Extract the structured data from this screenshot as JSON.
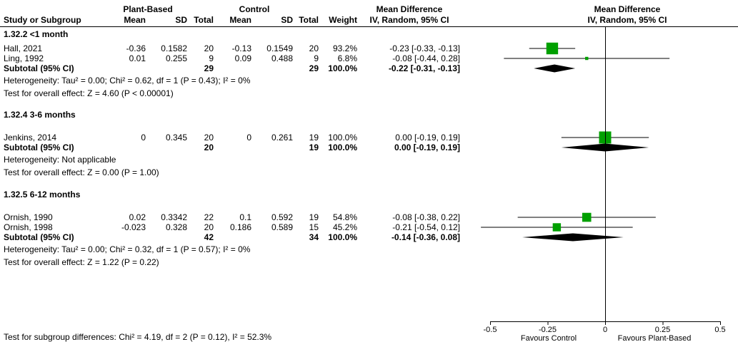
{
  "colors": {
    "square": "#00a000",
    "diamond": "#000000",
    "line": "#000000"
  },
  "header": {
    "group1": "Plant-Based",
    "group2": "Control",
    "md_text_col": "Mean Difference",
    "md_plot_col": "Mean Difference",
    "cols": [
      "Study or Subgroup",
      "Mean",
      "SD",
      "Total",
      "Mean",
      "SD",
      "Total",
      "Weight",
      "IV, Random, 95% CI"
    ],
    "plot_subheader": "IV, Random, 95% CI"
  },
  "chart_data": {
    "type": "forest",
    "effect_measure": "Mean Difference",
    "model": "IV, Random, 95% CI",
    "xlim": [
      -0.5,
      0.5
    ],
    "tick_values": [
      -0.5,
      -0.25,
      0,
      0.25,
      0.5
    ],
    "ticks": [
      "-0.5",
      "-0.25",
      "0",
      "0.25",
      "0.5"
    ],
    "favours_left": "Favours Control",
    "favours_right": "Favours Plant-Based",
    "footer": "Test for subgroup differences: Chi² = 4.19, df = 2 (P = 0.12), I² = 52.3%",
    "groups": [
      {
        "title": "1.32.2 <1 month",
        "studies": [
          {
            "study": "Hall, 2021",
            "t_mean": "-0.36",
            "t_sd": "0.1582",
            "t_total": "20",
            "c_mean": "-0.13",
            "c_sd": "0.1549",
            "c_total": "20",
            "weight": "93.2%",
            "ci_text": "-0.23 [-0.33, -0.13]",
            "est": -0.23,
            "lo": -0.33,
            "hi": -0.13,
            "weight_value": 93.2
          },
          {
            "study": "Ling, 1992",
            "t_mean": "0.01",
            "t_sd": "0.255",
            "t_total": "9",
            "c_mean": "0.09",
            "c_sd": "0.488",
            "c_total": "9",
            "weight": "6.8%",
            "ci_text": "-0.08 [-0.44, 0.28]",
            "est": -0.08,
            "lo": -0.44,
            "hi": 0.28,
            "weight_value": 6.8
          }
        ],
        "subtotal": {
          "label": "Subtotal (95% CI)",
          "t_total": "29",
          "c_total": "29",
          "weight": "100.0%",
          "ci_text": "-0.22 [-0.31, -0.13]",
          "est": -0.22,
          "lo": -0.31,
          "hi": -0.13
        },
        "heterogeneity": "Heterogeneity: Tau² = 0.00; Chi² = 0.62, df = 1 (P = 0.43); I² = 0%",
        "overall_effect": "Test for overall effect: Z = 4.60 (P < 0.00001)"
      },
      {
        "title": "1.32.4 3-6 months",
        "studies": [
          {
            "study": "Jenkins, 2014",
            "t_mean": "0",
            "t_sd": "0.345",
            "t_total": "20",
            "c_mean": "0",
            "c_sd": "0.261",
            "c_total": "19",
            "weight": "100.0%",
            "ci_text": "0.00 [-0.19, 0.19]",
            "est": 0.0,
            "lo": -0.19,
            "hi": 0.19,
            "weight_value": 100.0
          }
        ],
        "subtotal": {
          "label": "Subtotal (95% CI)",
          "t_total": "20",
          "c_total": "19",
          "weight": "100.0%",
          "ci_text": "0.00 [-0.19, 0.19]",
          "est": 0.0,
          "lo": -0.19,
          "hi": 0.19
        },
        "heterogeneity": "Heterogeneity: Not applicable",
        "overall_effect": "Test for overall effect: Z = 0.00 (P = 1.00)"
      },
      {
        "title": "1.32.5 6-12 months",
        "studies": [
          {
            "study": "Ornish, 1990",
            "t_mean": "0.02",
            "t_sd": "0.3342",
            "t_total": "22",
            "c_mean": "0.1",
            "c_sd": "0.592",
            "c_total": "19",
            "weight": "54.8%",
            "ci_text": "-0.08 [-0.38, 0.22]",
            "est": -0.08,
            "lo": -0.38,
            "hi": 0.22,
            "weight_value": 54.8
          },
          {
            "study": "Ornish, 1998",
            "t_mean": "-0.023",
            "t_sd": "0.328",
            "t_total": "20",
            "c_mean": "0.186",
            "c_sd": "0.589",
            "c_total": "15",
            "weight": "45.2%",
            "ci_text": "-0.21 [-0.54, 0.12]",
            "est": -0.21,
            "lo": -0.54,
            "hi": 0.12,
            "weight_value": 45.2
          }
        ],
        "subtotal": {
          "label": "Subtotal (95% CI)",
          "t_total": "42",
          "c_total": "34",
          "weight": "100.0%",
          "ci_text": "-0.14 [-0.36, 0.08]",
          "est": -0.14,
          "lo": -0.36,
          "hi": 0.08
        },
        "heterogeneity": "Heterogeneity: Tau² = 0.00; Chi² = 0.32, df = 1 (P = 0.57); I² = 0%",
        "overall_effect": "Test for overall effect: Z = 1.22 (P = 0.22)"
      }
    ]
  }
}
